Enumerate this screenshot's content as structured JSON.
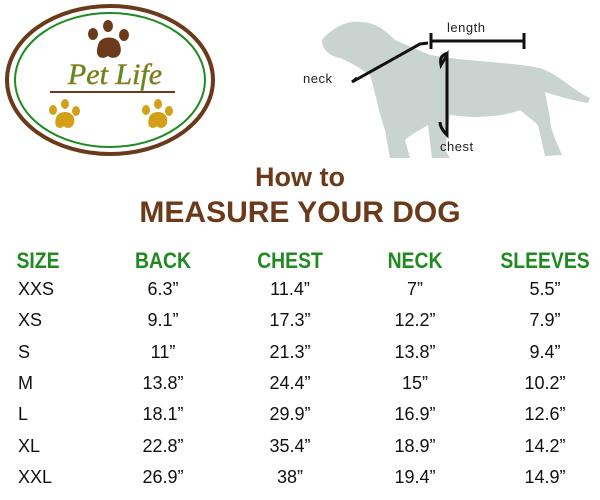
{
  "logo": {
    "text": "Pet Life",
    "colors": {
      "ring": "#6b3a1a",
      "inner_ring": "#1f8a1f",
      "paw_top": "#6b3a1a",
      "paw_bottom": "#d4a017"
    }
  },
  "diagram": {
    "labels": {
      "length": "length",
      "neck": "neck",
      "chest": "chest"
    },
    "silhouette_color": "#c9d3d0"
  },
  "title": {
    "line1": "How to",
    "line2": "MEASURE YOUR DOG",
    "color": "#6b3a1a"
  },
  "table": {
    "header_color": "#1f8a1f",
    "headers": [
      "SIZE",
      "BACK",
      "CHEST",
      "NECK",
      "SLEEVES"
    ],
    "rows": [
      [
        "XXS",
        "6.3”",
        "11.4”",
        "7”",
        "5.5”"
      ],
      [
        "XS",
        "9.1”",
        "17.3”",
        "12.2”",
        "7.9”"
      ],
      [
        "S",
        "11”",
        "21.3”",
        "13.8”",
        "9.4”"
      ],
      [
        "M",
        "13.8”",
        "24.4”",
        "15”",
        "10.2”"
      ],
      [
        "L",
        "18.1”",
        "29.9”",
        "16.9”",
        "12.6”"
      ],
      [
        "XL",
        "22.8”",
        "35.4”",
        "18.9”",
        "14.2”"
      ],
      [
        "XXL",
        "26.9”",
        "38”",
        "19.4”",
        "14.9”"
      ]
    ]
  }
}
